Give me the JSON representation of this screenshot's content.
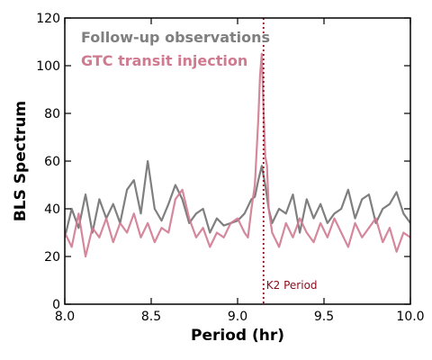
{
  "chart_data": {
    "type": "line",
    "xlabel": "Period (hr)",
    "ylabel": "BLS Spectrum",
    "xlim": [
      8.0,
      10.0
    ],
    "ylim": [
      0,
      120
    ],
    "xticks": [
      8.0,
      8.5,
      9.0,
      9.5,
      10.0
    ],
    "xtick_labels": [
      "8.0",
      "8.5",
      "9.0",
      "9.5",
      "10.0"
    ],
    "yticks": [
      0,
      20,
      40,
      60,
      80,
      100,
      120
    ],
    "ytick_labels": [
      "0",
      "20",
      "40",
      "60",
      "80",
      "100",
      "120"
    ],
    "legend_position": "top-left",
    "series": [
      {
        "name": "Follow-up observations",
        "color": "#7f7f7f",
        "x": [
          8.0,
          8.04,
          8.08,
          8.12,
          8.16,
          8.2,
          8.24,
          8.28,
          8.32,
          8.36,
          8.4,
          8.44,
          8.48,
          8.52,
          8.56,
          8.6,
          8.64,
          8.68,
          8.72,
          8.76,
          8.8,
          8.84,
          8.88,
          8.92,
          8.96,
          9.0,
          9.04,
          9.08,
          9.1,
          9.12,
          9.14,
          9.16,
          9.18,
          9.2,
          9.24,
          9.28,
          9.32,
          9.36,
          9.4,
          9.44,
          9.48,
          9.52,
          9.56,
          9.6,
          9.64,
          9.68,
          9.72,
          9.76,
          9.8,
          9.84,
          9.88,
          9.92,
          9.96,
          10.0
        ],
        "y": [
          28,
          40,
          32,
          46,
          30,
          44,
          36,
          42,
          34,
          48,
          52,
          38,
          60,
          40,
          35,
          42,
          50,
          44,
          34,
          38,
          40,
          30,
          36,
          33,
          34,
          35,
          38,
          44,
          45,
          52,
          58,
          50,
          40,
          34,
          40,
          38,
          46,
          30,
          44,
          36,
          42,
          34,
          38,
          40,
          48,
          36,
          44,
          46,
          34,
          40,
          42,
          47,
          38,
          34
        ]
      },
      {
        "name": "GTC transit injection",
        "color": "#d07a90",
        "x": [
          8.0,
          8.04,
          8.08,
          8.12,
          8.16,
          8.2,
          8.24,
          8.28,
          8.32,
          8.36,
          8.4,
          8.44,
          8.48,
          8.52,
          8.56,
          8.6,
          8.64,
          8.68,
          8.72,
          8.76,
          8.8,
          8.84,
          8.88,
          8.92,
          8.96,
          9.0,
          9.04,
          9.06,
          9.08,
          9.1,
          9.12,
          9.13,
          9.14,
          9.15,
          9.16,
          9.17,
          9.18,
          9.2,
          9.24,
          9.28,
          9.32,
          9.36,
          9.4,
          9.44,
          9.48,
          9.52,
          9.56,
          9.6,
          9.64,
          9.68,
          9.72,
          9.76,
          9.8,
          9.84,
          9.88,
          9.92,
          9.96,
          10.0
        ],
        "y": [
          30,
          24,
          38,
          20,
          32,
          28,
          36,
          26,
          34,
          30,
          38,
          28,
          34,
          26,
          32,
          30,
          44,
          48,
          36,
          28,
          32,
          24,
          30,
          28,
          34,
          36,
          30,
          28,
          40,
          50,
          78,
          96,
          105,
          82,
          62,
          58,
          40,
          30,
          24,
          34,
          28,
          36,
          30,
          26,
          34,
          28,
          36,
          30,
          24,
          34,
          28,
          32,
          36,
          26,
          32,
          22,
          30,
          28
        ]
      }
    ],
    "annotation": {
      "text": "K2 Period",
      "x": 9.15,
      "color": "#8b0a1a"
    }
  }
}
